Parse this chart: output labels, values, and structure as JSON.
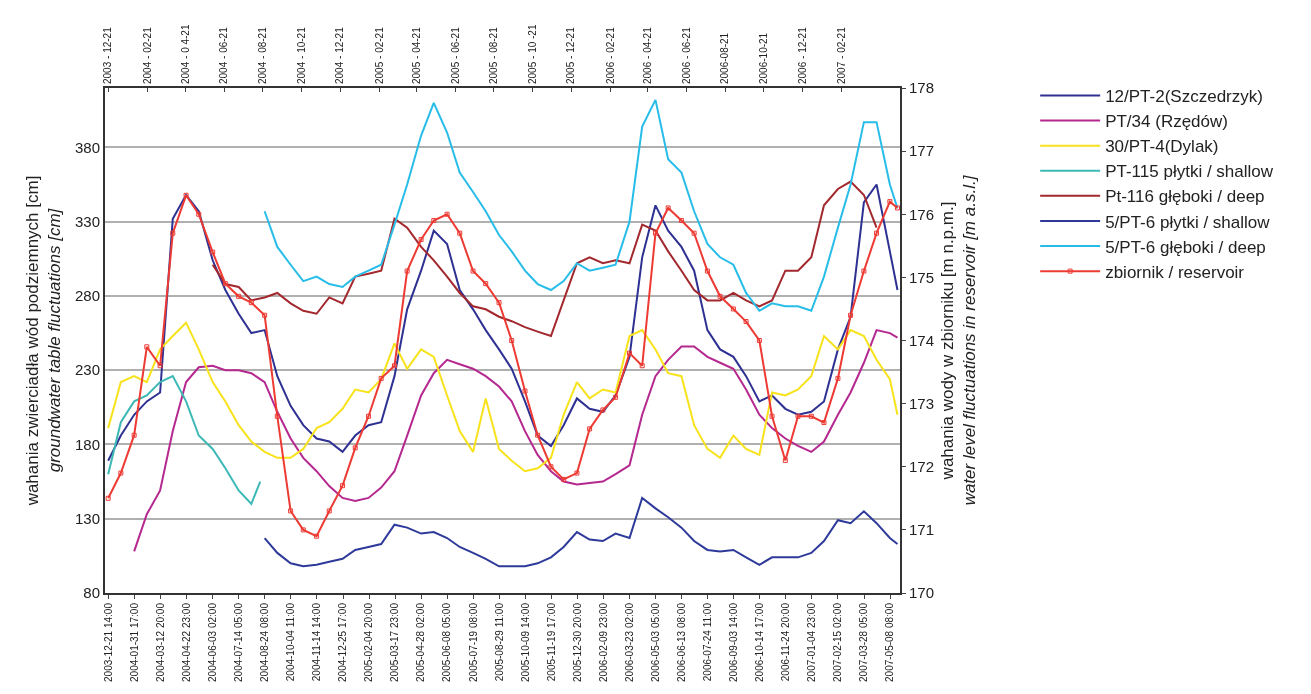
{
  "chart_data": {
    "type": "line",
    "ylabel": "wahania zwierciadła wód podziemnych [cm]\ngroundwater table fluctuations [cm]",
    "y2label": "wahania wody w zbiorniku [m n.p.m.]\nwater level fluctuations in reservoir [m a.s.l.]",
    "xlim": [
      "2003-12-16",
      "2007-05-24"
    ],
    "xticks": [
      {
        "value": "2003-12-21T14:00",
        "label": "2003-12-21 14:00"
      },
      {
        "value": "2004-01-31T17:00",
        "label": "2004-01-31 17:00"
      },
      {
        "value": "2004-03-12T20:00",
        "label": "2004-03-12 20:00"
      },
      {
        "value": "2004-04-22T23:00",
        "label": "2004-04-22 23:00"
      },
      {
        "value": "2004-06-03T02:00",
        "label": "2004-06-03 02:00"
      },
      {
        "value": "2004-07-14T05:00",
        "label": "2004-07-14 05:00"
      },
      {
        "value": "2004-08-24T08:00",
        "label": "2004-08-24 08:00"
      },
      {
        "value": "2004-10-04T11:00",
        "label": "2004-10-04 11:00"
      },
      {
        "value": "2004-11-14T14:00",
        "label": "2004-11-14 14:00"
      },
      {
        "value": "2004-12-25T17:00",
        "label": "2004-12-25 17:00"
      },
      {
        "value": "2005-02-04T20:00",
        "label": "2005-02-04 20:00"
      },
      {
        "value": "2005-03-17T23:00",
        "label": "2005-03-17 23:00"
      },
      {
        "value": "2005-04-28T02:00",
        "label": "2005-04-28 02:00"
      },
      {
        "value": "2005-06-08T05:00",
        "label": "2005-06-08 05:00"
      },
      {
        "value": "2005-07-19T08:00",
        "label": "2005-07-19 08:00"
      },
      {
        "value": "2005-08-29T11:00",
        "label": "2005-08-29 11:00"
      },
      {
        "value": "2005-10-09T14:00",
        "label": "2005-10-09 14:00"
      },
      {
        "value": "2005-11-19T17:00",
        "label": "2005-11-19 17:00"
      },
      {
        "value": "2005-12-30T20:00",
        "label": "2005-12-30 20:00"
      },
      {
        "value": "2006-02-09T23:00",
        "label": "2006-02-09 23:00"
      },
      {
        "value": "2006-03-23T02:00",
        "label": "2006-03-23 02:00"
      },
      {
        "value": "2006-05-03T05:00",
        "label": "2006-05-03 05:00"
      },
      {
        "value": "2006-06-13T08:00",
        "label": "2006-06-13 08:00"
      },
      {
        "value": "2006-07-24T11:00",
        "label": "2006-07-24 11:00"
      },
      {
        "value": "2006-09-03T14:00",
        "label": "2006-09-03 14:00"
      },
      {
        "value": "2006-10-14T17:00",
        "label": "2006-10-14 17:00"
      },
      {
        "value": "2006-11-24T20:00",
        "label": "2006-11-24 20:00"
      },
      {
        "value": "2007-01-04T23:00",
        "label": "2007-01-04 23:00"
      },
      {
        "value": "2007-02-15T02:00",
        "label": "2007-02-15 02:00"
      },
      {
        "value": "2007-03-28T05:00",
        "label": "2007-03-28 05:00"
      },
      {
        "value": "2007-05-08T08:00",
        "label": "2007-05-08 08:00"
      }
    ],
    "x2lim": [
      "2003-12-16",
      "2007-05-24"
    ],
    "x2ticks": [
      {
        "value": "2003-12-21",
        "label": "2003 - 12-21"
      },
      {
        "value": "2004-02-21",
        "label": "2004 - 02-21"
      },
      {
        "value": "2004-04-21",
        "label": "2004 - 0 4-21"
      },
      {
        "value": "2004-06-21",
        "label": "2004 - 06-21"
      },
      {
        "value": "2004-08-21",
        "label": "2004 - 08-21"
      },
      {
        "value": "2004-10-21",
        "label": "2004 - 10-21"
      },
      {
        "value": "2004-12-21",
        "label": "2004 - 12-21"
      },
      {
        "value": "2005-02-21",
        "label": "2005 - 02-21"
      },
      {
        "value": "2005-04-21",
        "label": "2005 - 04-21"
      },
      {
        "value": "2005-06-21",
        "label": "2005 - 06-21"
      },
      {
        "value": "2005-08-21",
        "label": "2005 - 08-21"
      },
      {
        "value": "2005-10-21",
        "label": "2005 - 10 -21"
      },
      {
        "value": "2005-12-21",
        "label": "2005 - 12-21"
      },
      {
        "value": "2006-02-21",
        "label": "2006 - 02-21"
      },
      {
        "value": "2006-04-21",
        "label": "2006 - 04-21"
      },
      {
        "value": "2006-06-21",
        "label": "2006 - 06-21"
      },
      {
        "value": "2006-08-21",
        "label": "2006-08-21"
      },
      {
        "value": "2006-10-21",
        "label": "2006-10-21"
      },
      {
        "value": "2006-12-21",
        "label": "2006 - 12-21"
      },
      {
        "value": "2007-02-21",
        "label": "2007 - 02-21"
      }
    ],
    "ylim": [
      80,
      420
    ],
    "yticks": [
      80,
      130,
      180,
      230,
      280,
      330,
      380
    ],
    "y2lim": [
      170,
      178
    ],
    "y2ticks": [
      170,
      171,
      172,
      173,
      174,
      175,
      176,
      177,
      178
    ],
    "grid": "y",
    "legend": "right",
    "x": [
      "2003-12-21",
      "2004-01-10",
      "2004-01-31",
      "2004-02-20",
      "2004-03-12",
      "2004-04-01",
      "2004-04-22",
      "2004-05-12",
      "2004-06-03",
      "2004-06-23",
      "2004-07-14",
      "2004-08-03",
      "2004-08-24",
      "2004-09-13",
      "2004-10-04",
      "2004-10-24",
      "2004-11-14",
      "2004-12-04",
      "2004-12-25",
      "2005-01-14",
      "2005-02-04",
      "2005-02-24",
      "2005-03-17",
      "2005-04-06",
      "2005-04-28",
      "2005-05-18",
      "2005-06-08",
      "2005-06-28",
      "2005-07-19",
      "2005-08-08",
      "2005-08-29",
      "2005-09-18",
      "2005-10-09",
      "2005-10-29",
      "2005-11-19",
      "2005-12-09",
      "2005-12-30",
      "2006-01-19",
      "2006-02-09",
      "2006-03-01",
      "2006-03-23",
      "2006-04-12",
      "2006-05-03",
      "2006-05-23",
      "2006-06-13",
      "2006-07-03",
      "2006-07-24",
      "2006-08-13",
      "2006-09-03",
      "2006-09-23",
      "2006-10-14",
      "2006-11-03",
      "2006-11-24",
      "2006-12-14",
      "2007-01-04",
      "2007-01-24",
      "2007-02-15",
      "2007-03-07",
      "2007-03-28",
      "2007-04-17",
      "2007-05-08",
      "2007-05-20"
    ],
    "series": [
      {
        "name": "12/PT-2(Szczedrzyk)",
        "color": "#2e3192",
        "values": [
          169,
          186,
          200,
          209,
          215,
          332,
          348,
          337,
          304,
          284,
          268,
          255,
          257,
          226,
          206,
          193,
          184,
          182,
          175,
          186,
          193,
          195,
          226,
          271,
          297,
          324,
          315,
          284,
          271,
          257,
          244,
          231,
          209,
          186,
          179,
          193,
          211,
          204,
          202,
          213,
          239,
          306,
          341,
          324,
          313,
          297,
          257,
          244,
          239,
          226,
          209,
          213,
          204,
          200,
          202,
          209,
          244,
          266,
          343,
          355,
          310,
          284
        ]
      },
      {
        "name": "PT/34 (Rzędów)",
        "color": "#b5288f",
        "x": [
          "2004-01-31",
          "2004-02-20",
          "2004-03-12",
          "2004-04-01",
          "2004-04-22",
          "2004-05-12",
          "2004-06-03",
          "2004-06-23",
          "2004-07-14",
          "2004-08-03",
          "2004-08-24",
          "2004-09-13",
          "2004-10-04",
          "2004-10-24",
          "2004-11-14",
          "2004-12-04",
          "2004-12-25",
          "2005-01-14",
          "2005-02-04",
          "2005-02-24",
          "2005-03-17",
          "2005-04-06",
          "2005-04-28",
          "2005-05-18",
          "2005-06-08",
          "2005-06-28",
          "2005-07-19",
          "2005-08-08",
          "2005-08-29",
          "2005-09-18",
          "2005-10-09",
          "2005-10-29",
          "2005-11-19",
          "2005-12-09",
          "2005-12-30",
          "2006-01-19",
          "2006-02-09",
          "2006-03-01",
          "2006-03-23",
          "2006-04-12",
          "2006-05-03",
          "2006-05-23",
          "2006-06-13",
          "2006-07-03",
          "2006-07-24",
          "2006-08-13",
          "2006-09-03",
          "2006-09-23",
          "2006-10-14",
          "2006-11-03",
          "2006-11-24",
          "2006-12-14",
          "2007-01-04",
          "2007-01-24",
          "2007-02-15",
          "2007-03-07",
          "2007-03-28",
          "2007-04-17",
          "2007-05-08",
          "2007-05-20"
        ],
        "values": [
          108,
          133,
          149,
          189,
          222,
          232,
          233,
          230,
          230,
          228,
          222,
          202,
          184,
          171,
          162,
          152,
          144,
          142,
          144,
          151,
          162,
          186,
          213,
          228,
          237,
          234,
          231,
          226,
          219,
          209,
          189,
          173,
          162,
          155,
          153,
          154,
          155,
          160,
          166,
          200,
          226,
          237,
          246,
          246,
          239,
          235,
          231,
          217,
          200,
          191,
          184,
          179,
          175,
          182,
          200,
          215,
          235,
          257,
          255,
          252
        ]
      },
      {
        "name": "30/PT-4(Dylak)",
        "color": "#f7e21b",
        "values": [
          191,
          222,
          226,
          222,
          244,
          253,
          262,
          244,
          222,
          209,
          193,
          182,
          175,
          171,
          171,
          177,
          191,
          195,
          204,
          217,
          215,
          224,
          248,
          231,
          244,
          239,
          213,
          189,
          175,
          211,
          177,
          169,
          162,
          164,
          171,
          200,
          222,
          211,
          217,
          215,
          253,
          257,
          244,
          228,
          226,
          193,
          177,
          171,
          186,
          177,
          173,
          215,
          213,
          217,
          226,
          253,
          244,
          257,
          253,
          237,
          224,
          200
        ]
      },
      {
        "name": "PT-115 płytki / shallow",
        "color": "#3cb9b5",
        "x": [
          "2003-12-21",
          "2004-01-10",
          "2004-01-31",
          "2004-02-20",
          "2004-03-12",
          "2004-04-01",
          "2004-04-22",
          "2004-05-12",
          "2004-06-03",
          "2004-06-23",
          "2004-07-14",
          "2004-08-03",
          "2004-08-17"
        ],
        "values": [
          160,
          195,
          209,
          213,
          222,
          226,
          209,
          186,
          177,
          164,
          149,
          140,
          155
        ]
      },
      {
        "name": "Pt-116 głęboki / deep",
        "color": "#a3282e",
        "x": [
          "2004-06-03",
          "2004-06-23",
          "2004-07-14",
          "2004-08-03",
          "2004-08-24",
          "2004-09-13",
          "2004-10-04",
          "2004-10-24",
          "2004-11-14",
          "2004-12-04",
          "2004-12-25",
          "2005-01-14",
          "2005-02-04",
          "2005-02-24",
          "2005-03-17",
          "2005-04-06",
          "2005-04-28",
          "2005-05-18",
          "2005-06-08",
          "2005-06-28",
          "2005-07-19",
          "2005-08-08",
          "2005-08-29",
          "2005-09-18",
          "2005-10-09",
          "2005-10-29",
          "2005-11-19",
          "2005-12-09",
          "2005-12-30",
          "2006-01-19",
          "2006-02-09",
          "2006-03-01",
          "2006-03-23",
          "2006-04-12",
          "2006-05-03",
          "2006-05-23",
          "2006-06-13",
          "2006-07-03",
          "2006-07-24",
          "2006-08-13",
          "2006-09-03",
          "2006-09-23",
          "2006-10-14",
          "2006-11-03",
          "2006-11-24",
          "2006-12-14",
          "2007-01-04",
          "2007-01-24",
          "2007-02-15",
          "2007-03-07",
          "2007-03-28",
          "2007-04-17"
        ],
        "values": [
          301,
          288,
          286,
          277,
          279,
          282,
          275,
          270,
          268,
          279,
          275,
          293,
          295,
          297,
          332,
          326,
          313,
          304,
          293,
          282,
          273,
          271,
          266,
          263,
          259,
          256,
          253,
          277,
          302,
          306,
          302,
          304,
          302,
          328,
          324,
          310,
          297,
          284,
          277,
          277,
          282,
          277,
          273,
          277,
          297,
          297,
          306,
          341,
          352,
          357,
          348,
          326
        ]
      },
      {
        "name": "5/PT-6 płytki / shallow",
        "color": "#2e3a9a",
        "x": [
          "2004-08-24",
          "2004-09-13",
          "2004-10-04",
          "2004-10-24",
          "2004-11-14",
          "2004-12-04",
          "2004-12-25",
          "2005-01-14",
          "2005-02-04",
          "2005-02-24",
          "2005-03-17",
          "2005-04-06",
          "2005-04-28",
          "2005-05-18",
          "2005-06-08",
          "2005-06-28",
          "2005-07-19",
          "2005-08-08",
          "2005-08-29",
          "2005-09-18",
          "2005-10-09",
          "2005-10-29",
          "2005-11-19",
          "2005-12-09",
          "2005-12-30",
          "2006-01-19",
          "2006-02-09",
          "2006-03-01",
          "2006-03-23",
          "2006-04-12",
          "2006-05-03",
          "2006-05-23",
          "2006-06-13",
          "2006-07-03",
          "2006-07-24",
          "2006-08-13",
          "2006-09-03",
          "2006-09-23",
          "2006-10-14",
          "2006-11-03",
          "2006-11-24",
          "2006-12-14",
          "2007-01-04",
          "2007-01-24",
          "2007-02-15",
          "2007-03-07",
          "2007-03-28",
          "2007-04-17",
          "2007-05-08",
          "2007-05-20"
        ],
        "values": [
          117,
          107,
          100,
          98,
          99,
          101,
          103,
          109,
          111,
          113,
          126,
          124,
          120,
          121,
          117,
          111,
          107,
          103,
          98,
          98,
          98,
          100,
          104,
          111,
          121,
          116,
          115,
          120,
          117,
          144,
          137,
          131,
          124,
          115,
          109,
          108,
          109,
          104,
          99,
          104,
          104,
          104,
          107,
          115,
          129,
          127,
          135,
          127,
          117,
          113
        ]
      },
      {
        "name": "5/PT-6 głęboki / deep",
        "color": "#27bde8",
        "x": [
          "2004-08-24",
          "2004-09-13",
          "2004-10-04",
          "2004-10-24",
          "2004-11-14",
          "2004-12-04",
          "2004-12-25",
          "2005-01-14",
          "2005-02-04",
          "2005-02-24",
          "2005-03-17",
          "2005-04-06",
          "2005-04-28",
          "2005-05-18",
          "2005-06-08",
          "2005-06-28",
          "2005-07-19",
          "2005-08-08",
          "2005-08-29",
          "2005-09-18",
          "2005-10-09",
          "2005-10-29",
          "2005-11-19",
          "2005-12-09",
          "2005-12-30",
          "2006-01-19",
          "2006-02-09",
          "2006-03-01",
          "2006-03-23",
          "2006-04-12",
          "2006-05-03",
          "2006-05-23",
          "2006-06-13",
          "2006-07-03",
          "2006-07-24",
          "2006-08-13",
          "2006-09-03",
          "2006-09-23",
          "2006-10-14",
          "2006-11-03",
          "2006-11-24",
          "2006-12-14",
          "2007-01-04",
          "2007-01-24",
          "2007-02-15",
          "2007-03-07",
          "2007-03-28",
          "2007-04-17",
          "2007-05-08",
          "2007-05-20"
        ],
        "values": [
          337,
          313,
          301,
          290,
          293,
          288,
          286,
          293,
          297,
          301,
          328,
          355,
          388,
          410,
          390,
          363,
          350,
          337,
          321,
          310,
          297,
          288,
          284,
          290,
          302,
          297,
          299,
          301,
          330,
          394,
          412,
          372,
          363,
          337,
          315,
          306,
          301,
          282,
          270,
          275,
          273,
          273,
          270,
          293,
          326,
          355,
          397,
          397,
          355,
          339
        ]
      },
      {
        "name": "zbiornik / reservoir",
        "color": "#ed3a33",
        "axis": "y2",
        "marker": "square",
        "values": [
          171.5,
          171.9,
          172.5,
          173.9,
          173.6,
          175.7,
          176.3,
          176.0,
          175.4,
          174.9,
          174.7,
          174.6,
          174.4,
          172.8,
          171.3,
          171.0,
          170.9,
          171.3,
          171.7,
          172.3,
          172.8,
          173.4,
          173.6,
          175.1,
          175.6,
          175.9,
          176.0,
          175.7,
          175.1,
          174.9,
          174.6,
          174.0,
          173.2,
          172.5,
          172.0,
          171.8,
          171.9,
          172.6,
          172.9,
          173.1,
          173.8,
          173.6,
          175.7,
          176.1,
          175.9,
          175.7,
          175.1,
          174.7,
          174.5,
          174.3,
          174.0,
          172.8,
          172.1,
          172.8,
          172.8,
          172.7,
          173.4,
          174.4,
          175.1,
          175.7,
          176.2,
          176.1
        ]
      }
    ]
  }
}
